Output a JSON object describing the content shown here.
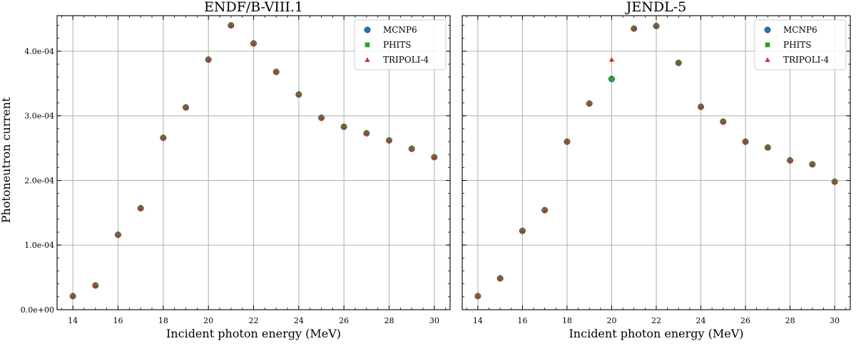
{
  "figure": {
    "ylabel": "Photoneutron current"
  },
  "chart_data": [
    {
      "type": "scatter",
      "title": "ENDF/B-VIII.1",
      "xlabel": "Incident photon energy (MeV)",
      "ylabel": "Photoneutron current",
      "xlim": [
        13.3,
        30.7
      ],
      "ylim": [
        0,
        0.000455
      ],
      "xticks": [
        14,
        16,
        18,
        20,
        22,
        24,
        26,
        28,
        30
      ],
      "xtick_labels": [
        "14",
        "16",
        "18",
        "20",
        "22",
        "24",
        "26",
        "28",
        "30"
      ],
      "yticks": [
        0,
        0.0001,
        0.0002,
        0.0003,
        0.0004
      ],
      "ytick_labels": [
        "0.0e+00",
        "1.0e-04",
        "2.0e-04",
        "3.0e-04",
        "4.0e-04"
      ],
      "grid": true,
      "legend": "top-right",
      "x": [
        14,
        15,
        16,
        17,
        18,
        19,
        20,
        21,
        22,
        23,
        24,
        25,
        26,
        27,
        28,
        29,
        30
      ],
      "series": [
        {
          "name": "MCNP6",
          "marker": "circle",
          "color": "#1f77b4",
          "values": [
            2.1e-05,
            3.75e-05,
            0.000116,
            0.000157,
            0.000266,
            0.000313,
            0.000387,
            0.00044,
            0.000412,
            0.000368,
            0.000333,
            0.000297,
            0.000283,
            0.000273,
            0.000262,
            0.000249,
            0.000236
          ]
        },
        {
          "name": "PHITS",
          "marker": "square",
          "color": "#2ca02c",
          "values": [
            2.1e-05,
            3.75e-05,
            0.000116,
            0.000157,
            0.000266,
            0.000313,
            0.000387,
            0.00044,
            0.000412,
            0.000368,
            0.000333,
            0.000297,
            0.000283,
            0.000273,
            0.000262,
            0.000249,
            0.000236
          ]
        },
        {
          "name": "TRIPOLI-4",
          "marker": "triangle",
          "color": "#d62728",
          "values": [
            2.1e-05,
            3.75e-05,
            0.000116,
            0.000157,
            0.000266,
            0.000313,
            0.000387,
            0.00044,
            0.000412,
            0.000368,
            0.000333,
            0.000297,
            0.000283,
            0.000273,
            0.000262,
            0.000249,
            0.000236
          ]
        }
      ]
    },
    {
      "type": "scatter",
      "title": "JENDL-5",
      "xlabel": "Incident photon energy (MeV)",
      "ylabel": "",
      "xlim": [
        13.3,
        30.7
      ],
      "ylim": [
        0,
        0.000455
      ],
      "xticks": [
        14,
        16,
        18,
        20,
        22,
        24,
        26,
        28,
        30
      ],
      "xtick_labels": [
        "14",
        "16",
        "18",
        "20",
        "22",
        "24",
        "26",
        "28",
        "30"
      ],
      "yticks": [],
      "ytick_labels": [],
      "grid": true,
      "legend": "top-right",
      "x": [
        14,
        15,
        16,
        17,
        18,
        19,
        20,
        21,
        22,
        23,
        24,
        25,
        26,
        27,
        28,
        29,
        30
      ],
      "series": [
        {
          "name": "MCNP6",
          "marker": "circle",
          "color": "#1f77b4",
          "values": [
            2.1e-05,
            4.85e-05,
            0.000122,
            0.000154,
            0.00026,
            0.000319,
            0.000357,
            0.000435,
            0.000439,
            0.000382,
            0.000314,
            0.000291,
            0.00026,
            0.000251,
            0.000231,
            0.000225,
            0.000198
          ]
        },
        {
          "name": "PHITS",
          "marker": "square",
          "color": "#2ca02c",
          "values": [
            2.1e-05,
            4.85e-05,
            0.000122,
            0.000154,
            0.00026,
            0.000319,
            0.000357,
            0.000435,
            0.000439,
            0.000382,
            0.000314,
            0.000291,
            0.00026,
            0.000251,
            0.000231,
            0.000225,
            0.000198
          ]
        },
        {
          "name": "TRIPOLI-4",
          "marker": "triangle",
          "color": "#d62728",
          "values": [
            2.1e-05,
            4.85e-05,
            0.000122,
            0.000154,
            0.00026,
            0.000319,
            0.000387,
            0.000435,
            0.000439,
            0.000382,
            0.000314,
            0.000291,
            0.00026,
            0.000251,
            0.000231,
            0.000225,
            0.000198
          ]
        }
      ]
    }
  ]
}
